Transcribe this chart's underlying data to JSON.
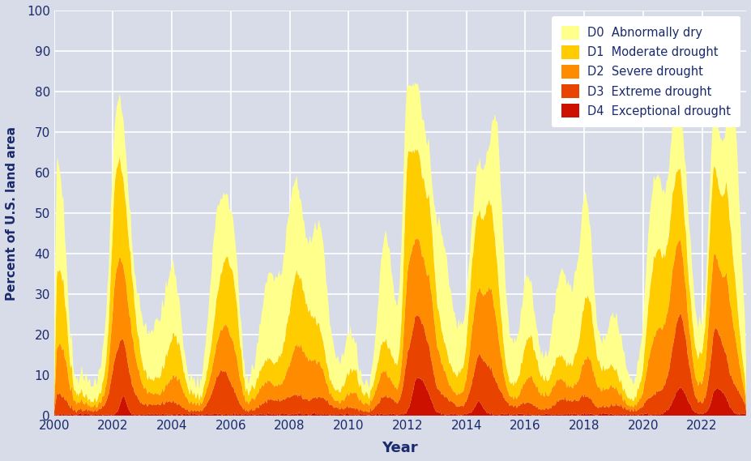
{
  "colors": {
    "D0": "#FFFF8C",
    "D1": "#FFCC00",
    "D2": "#FF8C00",
    "D3": "#E84400",
    "D4": "#CC1100"
  },
  "legend_labels": {
    "D0": "Abnormally dry",
    "D1": "Moderate drought",
    "D2": "Severe drought",
    "D3": "Extreme drought",
    "D4": "Exceptional drought"
  },
  "xlabel": "Year",
  "ylabel": "Percent of U.S. land area",
  "ylim": [
    0,
    100
  ],
  "yticks": [
    0,
    10,
    20,
    30,
    40,
    50,
    60,
    70,
    80,
    90,
    100
  ],
  "xticks": [
    2000,
    2002,
    2004,
    2006,
    2008,
    2010,
    2012,
    2014,
    2016,
    2018,
    2020,
    2022
  ],
  "background_color": "#D8DCE8",
  "plot_bg_color": "#D8DCE8",
  "legend_bg": "#FFFFFF",
  "text_color": "#1A2A6C",
  "grid_color": "#FFFFFF",
  "start_year": 2000,
  "n_weeks": 1252
}
